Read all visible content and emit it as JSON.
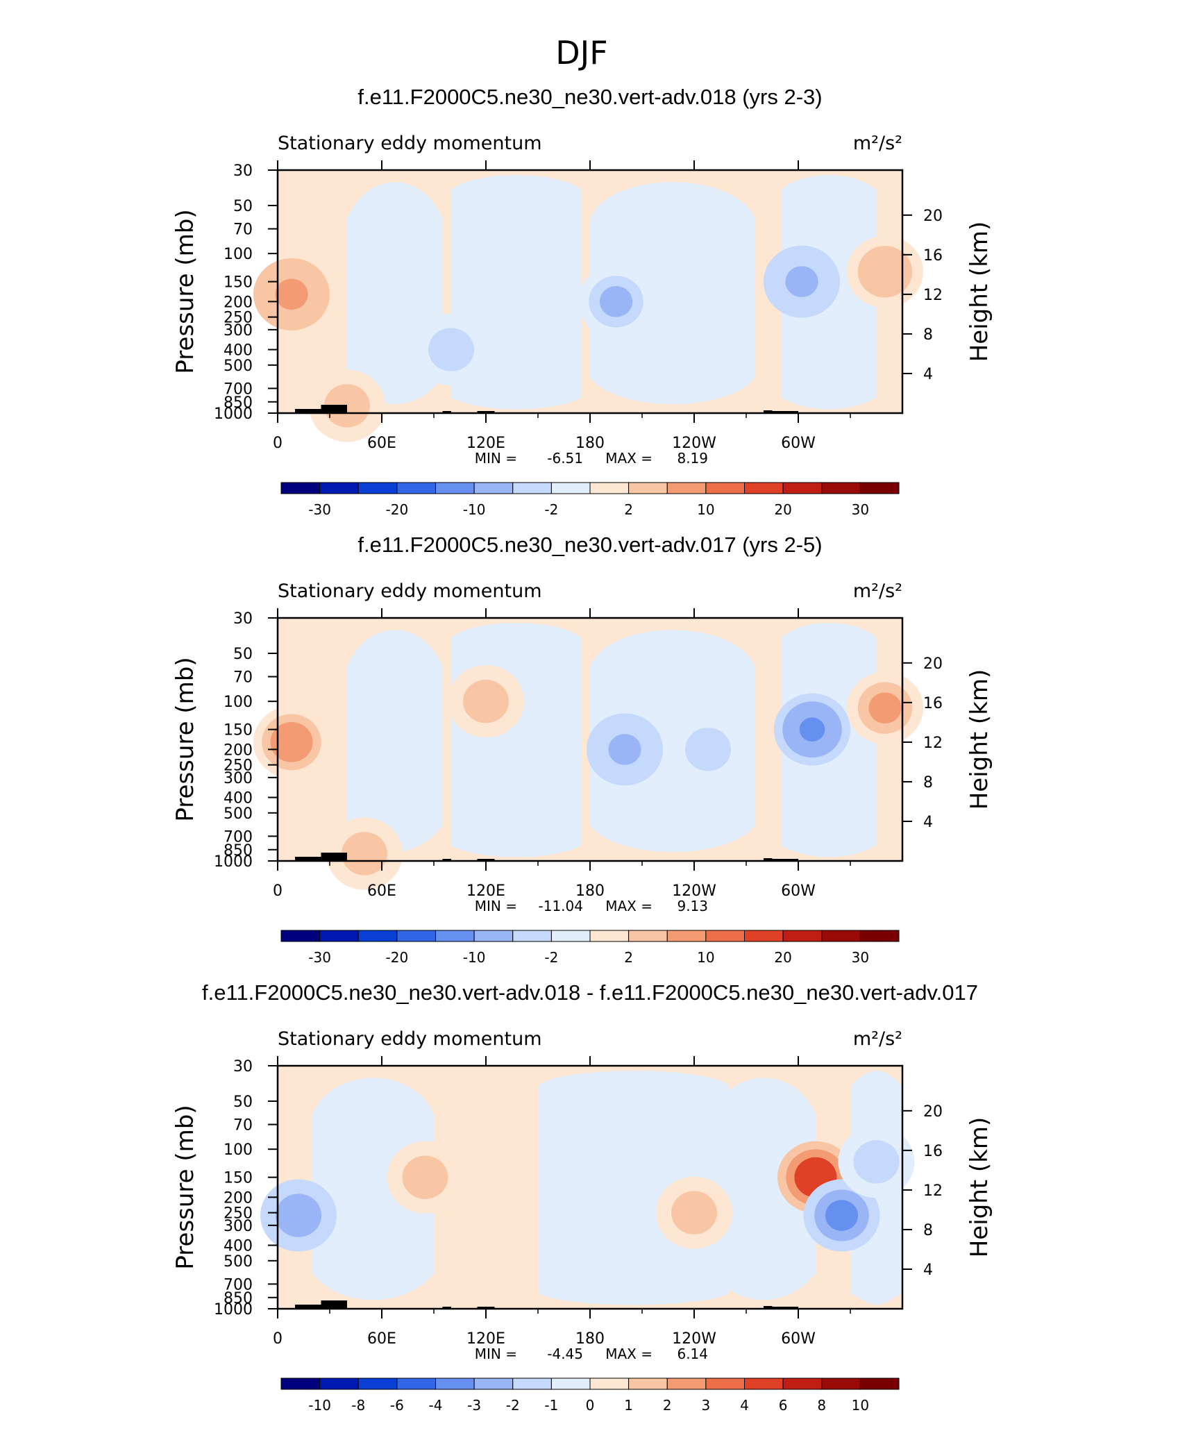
{
  "figure_title": "DJF",
  "chart_data": [
    {
      "type": "heatmap",
      "title": "f.e11.F2000C5.ne30_ne30.vert-adv.018 (yrs 2-3)",
      "left_label": "Stationary eddy momentum",
      "units": "m²/s²",
      "ylabel": "Pressure (mb)",
      "ylabel_right": "Height (km)",
      "x_ticks": [
        "0",
        "60E",
        "120E",
        "180",
        "120W",
        "60W"
      ],
      "y_ticks": [
        "30",
        "50",
        "70",
        "100",
        "150",
        "200",
        "250",
        "300",
        "400",
        "500",
        "700",
        "850",
        "1000"
      ],
      "y_right_ticks": [
        "20",
        "16",
        "12",
        "8",
        "4"
      ],
      "min_label": "MIN =",
      "min": "-6.51",
      "max_label": "MAX =",
      "max": "8.19",
      "colorbar_labels": [
        "-30",
        "-20",
        "-10",
        "-2",
        "2",
        "10",
        "20",
        "30"
      ],
      "colorbar_colors": [
        "#00007f",
        "#0019b0",
        "#0a3fd6",
        "#3366e6",
        "#6690f0",
        "#99b5f5",
        "#c4d9fb",
        "#e3eefc",
        "#fde6d2",
        "#f9c6a5",
        "#f39c74",
        "#ec6f47",
        "#de4126",
        "#c01e13",
        "#9a0a06",
        "#7a0000"
      ],
      "features": [
        {
          "lon": 8,
          "p": 180,
          "v": 7
        },
        {
          "lon": 195,
          "p": 200,
          "v": -5
        },
        {
          "lon": 302,
          "p": 150,
          "v": -6
        },
        {
          "lon": 350,
          "p": 130,
          "v": 5
        },
        {
          "lon": 100,
          "p": 400,
          "v": -2
        },
        {
          "lon": 40,
          "p": 900,
          "v": 3
        }
      ]
    },
    {
      "type": "heatmap",
      "title": "f.e11.F2000C5.ne30_ne30.vert-adv.017 (yrs 2-5)",
      "left_label": "Stationary eddy momentum",
      "units": "m²/s²",
      "ylabel": "Pressure (mb)",
      "ylabel_right": "Height (km)",
      "x_ticks": [
        "0",
        "60E",
        "120E",
        "180",
        "120W",
        "60W"
      ],
      "y_ticks": [
        "30",
        "50",
        "70",
        "100",
        "150",
        "200",
        "250",
        "300",
        "400",
        "500",
        "700",
        "850",
        "1000"
      ],
      "y_right_ticks": [
        "20",
        "16",
        "12",
        "8",
        "4"
      ],
      "min_label": "MIN =",
      "min": "-11.04",
      "max_label": "MAX =",
      "max": "9.13",
      "colorbar_labels": [
        "-30",
        "-20",
        "-10",
        "-2",
        "2",
        "10",
        "20",
        "30"
      ],
      "colorbar_colors": [
        "#00007f",
        "#0019b0",
        "#0a3fd6",
        "#3366e6",
        "#6690f0",
        "#99b5f5",
        "#c4d9fb",
        "#e3eefc",
        "#fde6d2",
        "#f9c6a5",
        "#f39c74",
        "#ec6f47",
        "#de4126",
        "#c01e13",
        "#9a0a06",
        "#7a0000"
      ],
      "features": [
        {
          "lon": 8,
          "p": 180,
          "v": 8
        },
        {
          "lon": 200,
          "p": 200,
          "v": -6
        },
        {
          "lon": 248,
          "p": 200,
          "v": -3
        },
        {
          "lon": 308,
          "p": 150,
          "v": -10
        },
        {
          "lon": 350,
          "p": 110,
          "v": 6
        },
        {
          "lon": 120,
          "p": 100,
          "v": 3
        },
        {
          "lon": 50,
          "p": 900,
          "v": 3
        }
      ]
    },
    {
      "type": "heatmap",
      "title": "f.e11.F2000C5.ne30_ne30.vert-adv.018 - f.e11.F2000C5.ne30_ne30.vert-adv.017",
      "left_label": "Stationary eddy momentum",
      "units": "m²/s²",
      "ylabel": "Pressure (mb)",
      "ylabel_right": "Height (km)",
      "x_ticks": [
        "0",
        "60E",
        "120E",
        "180",
        "120W",
        "60W"
      ],
      "y_ticks": [
        "30",
        "50",
        "70",
        "100",
        "150",
        "200",
        "250",
        "300",
        "400",
        "500",
        "700",
        "850",
        "1000"
      ],
      "y_right_ticks": [
        "20",
        "16",
        "12",
        "8",
        "4"
      ],
      "min_label": "MIN =",
      "min": "-4.45",
      "max_label": "MAX =",
      "max": "6.14",
      "colorbar_labels": [
        "-10",
        "-8",
        "-6",
        "-4",
        "-3",
        "-2",
        "-1",
        "0",
        "1",
        "2",
        "3",
        "4",
        "6",
        "8",
        "10"
      ],
      "colorbar_colors": [
        "#00007f",
        "#0019b0",
        "#0a3fd6",
        "#3366e6",
        "#6690f0",
        "#99b5f5",
        "#c4d9fb",
        "#e3eefc",
        "#fde6d2",
        "#f9c6a5",
        "#f39c74",
        "#ec6f47",
        "#de4126",
        "#c01e13",
        "#9a0a06",
        "#7a0000"
      ],
      "features": [
        {
          "lon": 310,
          "p": 150,
          "v": 6
        },
        {
          "lon": 325,
          "p": 260,
          "v": -3
        },
        {
          "lon": 85,
          "p": 150,
          "v": 2
        },
        {
          "lon": 12,
          "p": 260,
          "v": -2
        },
        {
          "lon": 240,
          "p": 250,
          "v": 2
        },
        {
          "lon": 345,
          "p": 120,
          "v": -1.5
        }
      ]
    }
  ]
}
